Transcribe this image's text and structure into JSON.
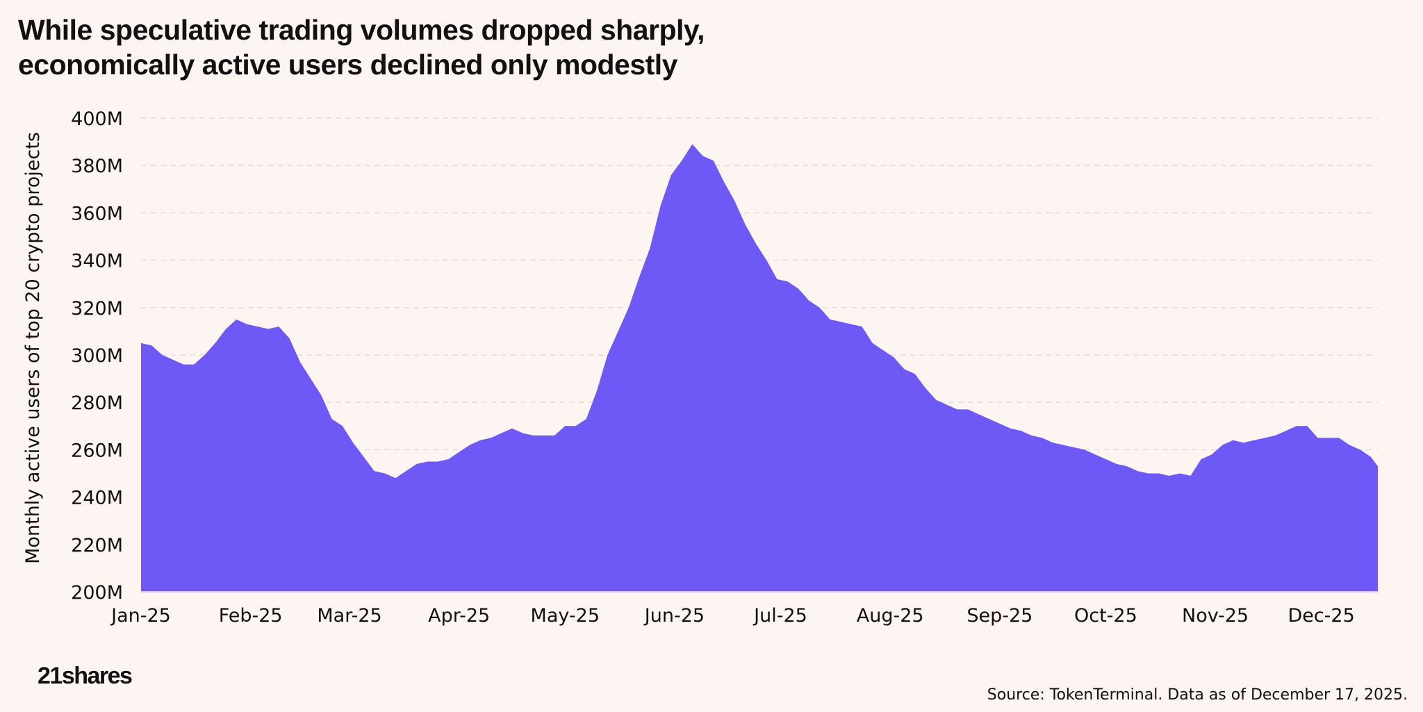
{
  "title_lines": [
    "While speculative trading volumes dropped sharply,",
    "economically active users declined only modestly"
  ],
  "brand": {
    "logo_text": "21shares",
    "source_text": "Source: TokenTerminal. Data as of December 17, 2025."
  },
  "colors": {
    "background": "#fdf5f2",
    "area_fill": "#6e58f6",
    "gridline": "#e4dcdb"
  },
  "chart_data": {
    "type": "area",
    "title": "While speculative trading volumes dropped sharply, economically active users declined only modestly",
    "xlabel": "",
    "ylabel": "Monthly active users of  top 20 crypto projects",
    "ylim": [
      200,
      400
    ],
    "y_unit": "M",
    "y_ticks": [
      "200M",
      "220M",
      "240M",
      "260M",
      "280M",
      "300M",
      "320M",
      "340M",
      "360M",
      "380M",
      "400M"
    ],
    "x_tick_labels": [
      "Jan-25",
      "Feb-25",
      "Mar-25",
      "Apr-25",
      "May-25",
      "Jun-25",
      "Jul-25",
      "Aug-25",
      "Sep-25",
      "Oct-25",
      "Nov-25",
      "Dec-25"
    ],
    "x_tick_days": [
      0,
      31,
      59,
      90,
      120,
      151,
      181,
      212,
      243,
      273,
      304,
      334
    ],
    "x_domain_days": [
      0,
      350
    ],
    "grid": true,
    "series": [
      {
        "name": "Monthly active users (M)",
        "points": [
          [
            0,
            305
          ],
          [
            3,
            304
          ],
          [
            6,
            300
          ],
          [
            9,
            298
          ],
          [
            12,
            296
          ],
          [
            15,
            296
          ],
          [
            18,
            300
          ],
          [
            21,
            305
          ],
          [
            24,
            311
          ],
          [
            27,
            315
          ],
          [
            30,
            313
          ],
          [
            33,
            312
          ],
          [
            36,
            311
          ],
          [
            39,
            312
          ],
          [
            42,
            307
          ],
          [
            45,
            297
          ],
          [
            48,
            290
          ],
          [
            51,
            283
          ],
          [
            54,
            273
          ],
          [
            57,
            270
          ],
          [
            60,
            263
          ],
          [
            63,
            257
          ],
          [
            66,
            251
          ],
          [
            69,
            250
          ],
          [
            72,
            248
          ],
          [
            75,
            251
          ],
          [
            78,
            254
          ],
          [
            81,
            255
          ],
          [
            84,
            255
          ],
          [
            87,
            256
          ],
          [
            90,
            259
          ],
          [
            93,
            262
          ],
          [
            96,
            264
          ],
          [
            99,
            265
          ],
          [
            102,
            267
          ],
          [
            105,
            269
          ],
          [
            108,
            267
          ],
          [
            111,
            266
          ],
          [
            114,
            266
          ],
          [
            117,
            266
          ],
          [
            120,
            270
          ],
          [
            123,
            270
          ],
          [
            126,
            273
          ],
          [
            129,
            285
          ],
          [
            132,
            300
          ],
          [
            135,
            310
          ],
          [
            138,
            320
          ],
          [
            141,
            333
          ],
          [
            144,
            345
          ],
          [
            147,
            363
          ],
          [
            150,
            376
          ],
          [
            153,
            382
          ],
          [
            156,
            389
          ],
          [
            159,
            384
          ],
          [
            162,
            382
          ],
          [
            165,
            373
          ],
          [
            168,
            365
          ],
          [
            171,
            355
          ],
          [
            174,
            347
          ],
          [
            177,
            340
          ],
          [
            180,
            332
          ],
          [
            183,
            331
          ],
          [
            186,
            328
          ],
          [
            189,
            323
          ],
          [
            192,
            320
          ],
          [
            195,
            315
          ],
          [
            198,
            314
          ],
          [
            201,
            313
          ],
          [
            204,
            312
          ],
          [
            207,
            305
          ],
          [
            210,
            302
          ],
          [
            213,
            299
          ],
          [
            216,
            294
          ],
          [
            219,
            292
          ],
          [
            222,
            286
          ],
          [
            225,
            281
          ],
          [
            228,
            279
          ],
          [
            231,
            277
          ],
          [
            234,
            277
          ],
          [
            237,
            275
          ],
          [
            240,
            273
          ],
          [
            243,
            271
          ],
          [
            246,
            269
          ],
          [
            249,
            268
          ],
          [
            252,
            266
          ],
          [
            255,
            265
          ],
          [
            258,
            263
          ],
          [
            261,
            262
          ],
          [
            264,
            261
          ],
          [
            267,
            260
          ],
          [
            270,
            258
          ],
          [
            273,
            256
          ],
          [
            276,
            254
          ],
          [
            279,
            253
          ],
          [
            282,
            251
          ],
          [
            285,
            250
          ],
          [
            288,
            250
          ],
          [
            291,
            249
          ],
          [
            294,
            250
          ],
          [
            297,
            249
          ],
          [
            300,
            256
          ],
          [
            303,
            258
          ],
          [
            306,
            262
          ],
          [
            309,
            264
          ],
          [
            312,
            263
          ],
          [
            315,
            264
          ],
          [
            318,
            265
          ],
          [
            321,
            266
          ],
          [
            324,
            268
          ],
          [
            327,
            270
          ],
          [
            330,
            270
          ],
          [
            333,
            265
          ],
          [
            336,
            265
          ],
          [
            339,
            265
          ],
          [
            342,
            262
          ],
          [
            345,
            260
          ],
          [
            348,
            257
          ],
          [
            350,
            253
          ]
        ]
      }
    ]
  }
}
